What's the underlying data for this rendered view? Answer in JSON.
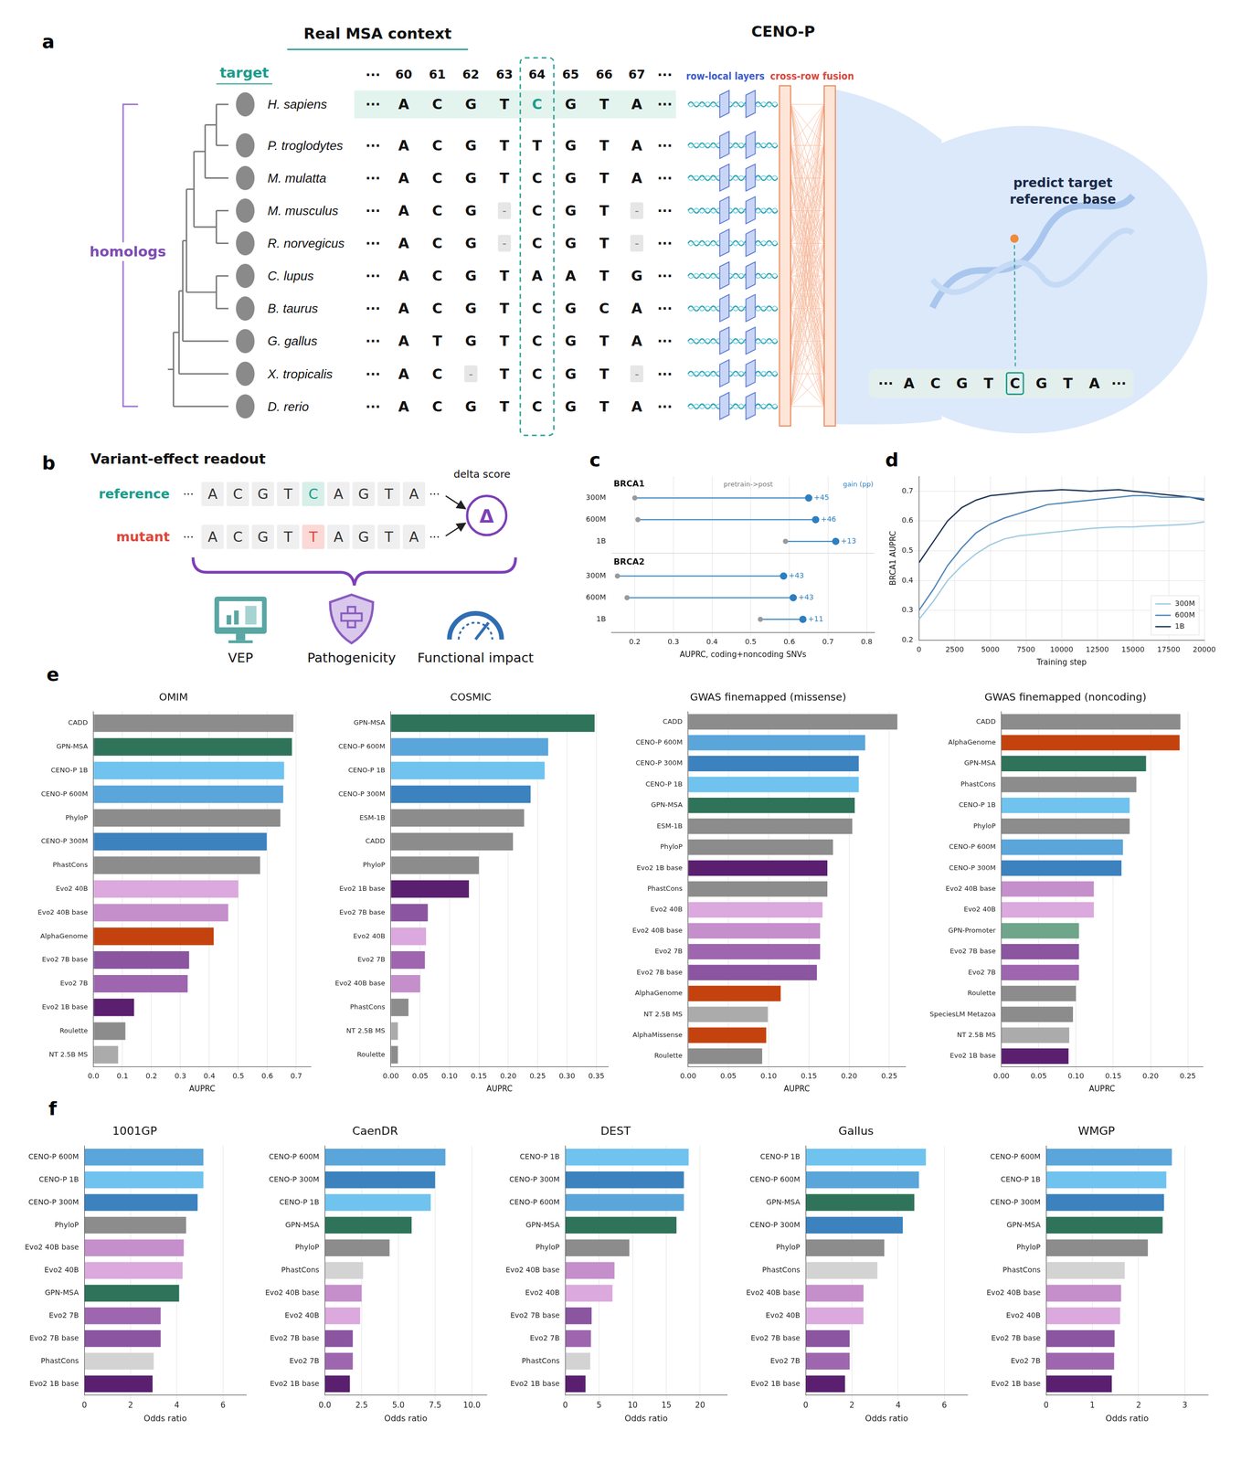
{
  "diagram_a": {
    "panel": "a",
    "title": "Real MSA context",
    "model_title": "CENO-P",
    "target_label": "target",
    "homologs_label": "homologs",
    "ellipsis": "···",
    "positions": [
      "60",
      "61",
      "62",
      "63",
      "64",
      "65",
      "66",
      "67"
    ],
    "target_position": "64",
    "rows": [
      {
        "species": "H. sapiens",
        "sequence": [
          "A",
          "C",
          "G",
          "T",
          "C",
          "G",
          "T",
          "A"
        ]
      },
      {
        "species": "P. troglodytes",
        "sequence": [
          "A",
          "C",
          "G",
          "T",
          "T",
          "G",
          "T",
          "A"
        ]
      },
      {
        "species": "M. mulatta",
        "sequence": [
          "A",
          "C",
          "G",
          "T",
          "C",
          "G",
          "T",
          "A"
        ]
      },
      {
        "species": "M. musculus",
        "sequence": [
          "A",
          "C",
          "G",
          "-",
          "C",
          "G",
          "T",
          "-"
        ]
      },
      {
        "species": "R. norvegicus",
        "sequence": [
          "A",
          "C",
          "G",
          "-",
          "C",
          "G",
          "T",
          "-"
        ]
      },
      {
        "species": "C. lupus",
        "sequence": [
          "A",
          "C",
          "G",
          "T",
          "A",
          "A",
          "T",
          "G"
        ]
      },
      {
        "species": "B. taurus",
        "sequence": [
          "A",
          "C",
          "G",
          "T",
          "C",
          "G",
          "C",
          "A"
        ]
      },
      {
        "species": "G. gallus",
        "sequence": [
          "A",
          "T",
          "G",
          "T",
          "C",
          "G",
          "T",
          "A"
        ]
      },
      {
        "species": "X. tropicalis",
        "sequence": [
          "A",
          "C",
          "-",
          "T",
          "C",
          "G",
          "T",
          "-"
        ]
      },
      {
        "species": "D. rerio",
        "sequence": [
          "A",
          "C",
          "G",
          "T",
          "C",
          "G",
          "T",
          "A"
        ]
      }
    ],
    "layer_labels": [
      "row-local layers",
      "cross-row fusion"
    ],
    "prediction_label": "predict target reference base",
    "output_sequence": [
      "A",
      "C",
      "G",
      "T",
      "C",
      "G",
      "T",
      "A"
    ]
  },
  "diagram_b": {
    "panel": "b",
    "title": "Variant-effect readout",
    "ellipsis": "···",
    "reference_label": "reference",
    "reference_sequence": [
      "A",
      "C",
      "G",
      "T",
      "C",
      "A",
      "G",
      "T",
      "A"
    ],
    "mutant_label": "mutant",
    "mutant_sequence": [
      "A",
      "C",
      "G",
      "T",
      "T",
      "A",
      "G",
      "T",
      "A"
    ],
    "delta_label": "delta score",
    "delta_symbol": "Δ",
    "readouts": [
      "VEP",
      "Pathogenicity",
      "Functional impact"
    ]
  },
  "chart_data": [
    {
      "panel": "c",
      "type": "dumbbell",
      "orientation": "horizontal",
      "annotations": [
        "pretrain->post",
        "gain (pp)"
      ],
      "xlabel": "AUPRC, coding+noncoding SNVs",
      "xlim": [
        0.14,
        0.82
      ],
      "xticks": [
        0.2,
        0.3,
        0.4,
        0.5,
        0.6,
        0.7,
        0.8
      ],
      "grid": true,
      "color": "#2c7fc0",
      "groups": [
        {
          "name": "BRCA1",
          "categories": [
            "300M",
            "600M",
            "1B"
          ],
          "pretrain": [
            0.2,
            0.208,
            0.59
          ],
          "post": [
            0.65,
            0.668,
            0.72
          ],
          "value_labels": [
            "+45",
            "+46",
            "+13"
          ]
        },
        {
          "name": "BRCA2",
          "categories": [
            "300M",
            "600M",
            "1B"
          ],
          "pretrain": [
            0.155,
            0.18,
            0.525
          ],
          "post": [
            0.585,
            0.61,
            0.635
          ],
          "value_labels": [
            "+43",
            "+43",
            "+11"
          ]
        }
      ]
    },
    {
      "panel": "d",
      "type": "line",
      "xlabel": "Training step",
      "ylabel": "BRCA1 AUPRC",
      "x": [
        0,
        1000,
        2000,
        3000,
        4000,
        5000,
        6000,
        7000,
        8000,
        9000,
        10000,
        11000,
        12000,
        13000,
        14000,
        15000,
        16000,
        17000,
        18000,
        19000,
        20000
      ],
      "series": [
        {
          "name": "300M",
          "color": "#9ecae1",
          "values": [
            0.27,
            0.33,
            0.4,
            0.45,
            0.49,
            0.52,
            0.54,
            0.55,
            0.555,
            0.56,
            0.565,
            0.57,
            0.575,
            0.578,
            0.58,
            0.58,
            0.583,
            0.585,
            0.587,
            0.59,
            0.597
          ]
        },
        {
          "name": "600M",
          "color": "#4f86b8",
          "values": [
            0.3,
            0.37,
            0.45,
            0.51,
            0.56,
            0.59,
            0.61,
            0.625,
            0.64,
            0.655,
            0.66,
            0.665,
            0.67,
            0.675,
            0.68,
            0.685,
            0.685,
            0.68,
            0.68,
            0.68,
            0.675
          ]
        },
        {
          "name": "1B",
          "color": "#1d3557",
          "values": [
            0.46,
            0.53,
            0.6,
            0.645,
            0.67,
            0.685,
            0.69,
            0.695,
            0.7,
            0.702,
            0.705,
            0.703,
            0.7,
            0.703,
            0.705,
            0.7,
            0.695,
            0.69,
            0.685,
            0.68,
            0.67
          ]
        }
      ],
      "xlim": [
        0,
        20000
      ],
      "xticks": [
        0,
        2500,
        5000,
        7500,
        10000,
        12500,
        15000,
        17500,
        20000
      ],
      "ylim": [
        0.2,
        0.75
      ],
      "yticks": [
        0.2,
        0.3,
        0.4,
        0.5,
        0.6,
        0.7
      ],
      "grid": true,
      "legend": "lower right"
    },
    {
      "panel": "e",
      "type": "bar",
      "orientation": "horizontal",
      "title": "OMIM",
      "xlabel": "AUPRC",
      "categories": [
        "CADD",
        "GPN-MSA",
        "CENO-P 1B",
        "CENO-P 600M",
        "PhyloP",
        "CENO-P 300M",
        "PhastCons",
        "Evo2 40B",
        "Evo2 40B base",
        "AlphaGenome",
        "Evo2 7B base",
        "Evo2 7B",
        "Evo2 1B base",
        "Roulette",
        "NT 2.5B MS"
      ],
      "values": [
        0.69,
        0.685,
        0.658,
        0.655,
        0.645,
        0.598,
        0.575,
        0.5,
        0.465,
        0.415,
        0.33,
        0.325,
        0.14,
        0.11,
        0.085
      ],
      "colors": [
        "#8c8c8c",
        "#2e735a",
        "#6fc3ee",
        "#5aa5da",
        "#8c8c8c",
        "#3b82bf",
        "#8c8c8c",
        "#dba9dd",
        "#c58fcb",
        "#c4420e",
        "#8b55a0",
        "#9e66ae",
        "#5b1f70",
        "#8c8c8c",
        "#ababab"
      ],
      "xlim": [
        0,
        0.75
      ],
      "xticks": [
        {
          "value": 0,
          "label": "0.0"
        },
        0.1,
        0.2,
        0.3,
        0.4,
        0.5,
        0.6,
        0.7
      ],
      "grid": true
    },
    {
      "type": "bar",
      "orientation": "horizontal",
      "title": "COSMIC",
      "xlabel": "AUPRC",
      "categories": [
        "GPN-MSA",
        "CENO-P 600M",
        "CENO-P 1B",
        "CENO-P 300M",
        "ESM-1B",
        "CADD",
        "PhyloP",
        "Evo2 1B base",
        "Evo2 7B base",
        "Evo2 40B",
        "Evo2 7B",
        "Evo2 40B base",
        "PhastCons",
        "NT 2.5B MS",
        "Roulette"
      ],
      "values": [
        0.347,
        0.268,
        0.262,
        0.238,
        0.227,
        0.208,
        0.15,
        0.133,
        0.063,
        0.06,
        0.058,
        0.05,
        0.03,
        0.012,
        0.012
      ],
      "colors": [
        "#2e735a",
        "#5aa5da",
        "#6fc3ee",
        "#3b82bf",
        "#8c8c8c",
        "#8c8c8c",
        "#8c8c8c",
        "#5b1f70",
        "#8b55a0",
        "#dba9dd",
        "#9e66ae",
        "#c58fcb",
        "#8c8c8c",
        "#ababab",
        "#8c8c8c"
      ],
      "xlim": [
        0,
        0.37
      ],
      "xticks": [
        {
          "value": 0,
          "label": "0.00"
        },
        0.05,
        {
          "value": 0.1,
          "label": "0.10"
        },
        0.15,
        {
          "value": 0.2,
          "label": "0.20"
        },
        0.25,
        {
          "value": 0.3,
          "label": "0.30"
        },
        0.35
      ],
      "grid": true
    },
    {
      "type": "bar",
      "orientation": "horizontal",
      "title": "GWAS finemapped (missense)",
      "xlabel": "AUPRC",
      "categories": [
        "CADD",
        "CENO-P 600M",
        "CENO-P 300M",
        "CENO-P 1B",
        "GPN-MSA",
        "ESM-1B",
        "PhyloP",
        "Evo2 1B base",
        "PhastCons",
        "Evo2 40B",
        "Evo2 40B base",
        "Evo2 7B",
        "Evo2 7B base",
        "AlphaGenome",
        "NT 2.5B MS",
        "AlphaMissense",
        "Roulette"
      ],
      "values": [
        0.26,
        0.22,
        0.212,
        0.212,
        0.207,
        0.204,
        0.18,
        0.173,
        0.173,
        0.167,
        0.164,
        0.164,
        0.16,
        0.115,
        0.099,
        0.097,
        0.092
      ],
      "colors": [
        "#8c8c8c",
        "#5aa5da",
        "#3b82bf",
        "#6fc3ee",
        "#2e735a",
        "#8c8c8c",
        "#8c8c8c",
        "#5b1f70",
        "#8c8c8c",
        "#dba9dd",
        "#c58fcb",
        "#9e66ae",
        "#8b55a0",
        "#c4420e",
        "#ababab",
        "#c4420e",
        "#8c8c8c"
      ],
      "xlim": [
        0,
        0.27
      ],
      "xticks": [
        {
          "value": 0,
          "label": "0.00"
        },
        0.05,
        {
          "value": 0.1,
          "label": "0.10"
        },
        0.15,
        {
          "value": 0.2,
          "label": "0.20"
        },
        0.25
      ],
      "grid": true
    },
    {
      "type": "bar",
      "orientation": "horizontal",
      "title": "GWAS finemapped (noncoding)",
      "xlabel": "AUPRC",
      "categories": [
        "CADD",
        "AlphaGenome",
        "GPN-MSA",
        "PhastCons",
        "CENO-P 1B",
        "PhyloP",
        "CENO-P 600M",
        "CENO-P 300M",
        "Evo2 40B base",
        "Evo2 40B",
        "GPN-Promoter",
        "Evo2 7B base",
        "Evo2 7B",
        "Roulette",
        "SpeciesLM Metazoa",
        "NT 2.5B MS",
        "Evo2 1B base"
      ],
      "values": [
        0.24,
        0.239,
        0.194,
        0.181,
        0.172,
        0.172,
        0.163,
        0.161,
        0.124,
        0.124,
        0.104,
        0.104,
        0.104,
        0.1,
        0.096,
        0.091,
        0.09
      ],
      "colors": [
        "#8c8c8c",
        "#c4420e",
        "#2e735a",
        "#8c8c8c",
        "#6fc3ee",
        "#8c8c8c",
        "#5aa5da",
        "#3b82bf",
        "#c58fcb",
        "#dba9dd",
        "#6fa58b",
        "#8b55a0",
        "#9e66ae",
        "#8c8c8c",
        "#8c8c8c",
        "#ababab",
        "#5b1f70"
      ],
      "xlim": [
        0,
        0.27
      ],
      "xticks": [
        {
          "value": 0,
          "label": "0.00"
        },
        0.05,
        {
          "value": 0.1,
          "label": "0.10"
        },
        0.15,
        {
          "value": 0.2,
          "label": "0.20"
        },
        0.25
      ],
      "grid": true
    },
    {
      "panel": "f",
      "type": "bar",
      "orientation": "horizontal",
      "title": "1001GP",
      "xlabel": "Odds ratio",
      "categories": [
        "CENO-P 600M",
        "CENO-P 1B",
        "CENO-P 300M",
        "PhyloP",
        "Evo2 40B base",
        "Evo2 40B",
        "GPN-MSA",
        "Evo2 7B",
        "Evo2 7B base",
        "PhastCons",
        "Evo2 1B base"
      ],
      "values": [
        5.15,
        5.15,
        4.9,
        4.4,
        4.3,
        4.25,
        4.1,
        3.3,
        3.3,
        3.0,
        2.95
      ],
      "colors": [
        "#5aa5da",
        "#6fc3ee",
        "#3b82bf",
        "#8c8c8c",
        "#c58fcb",
        "#dba9dd",
        "#2e735a",
        "#9e66ae",
        "#8b55a0",
        "#d3d3d3",
        "#5b1f70"
      ],
      "xlim": [
        0,
        7
      ],
      "xticks": [
        0,
        2,
        4,
        6
      ],
      "grid": true
    },
    {
      "type": "bar",
      "orientation": "horizontal",
      "title": "CaenDR",
      "xlabel": "Odds ratio",
      "categories": [
        "CENO-P 600M",
        "CENO-P 300M",
        "CENO-P 1B",
        "GPN-MSA",
        "PhyloP",
        "PhastCons",
        "Evo2 40B base",
        "Evo2 40B",
        "Evo2 7B base",
        "Evo2 7B",
        "Evo2 1B base"
      ],
      "values": [
        8.2,
        7.5,
        7.2,
        5.9,
        4.4,
        2.6,
        2.5,
        2.4,
        1.9,
        1.9,
        1.7
      ],
      "colors": [
        "#5aa5da",
        "#3b82bf",
        "#6fc3ee",
        "#2e735a",
        "#8c8c8c",
        "#d3d3d3",
        "#c58fcb",
        "#dba9dd",
        "#8b55a0",
        "#9e66ae",
        "#5b1f70"
      ],
      "xlim": [
        0,
        11
      ],
      "xticks": [
        {
          "value": 0,
          "label": "0.0"
        },
        2.5,
        {
          "value": 5,
          "label": "5.0"
        },
        7.5,
        {
          "value": 10,
          "label": "10.0"
        }
      ],
      "grid": true
    },
    {
      "type": "bar",
      "orientation": "horizontal",
      "title": "DEST",
      "xlabel": "Odds ratio",
      "categories": [
        "CENO-P 1B",
        "CENO-P 300M",
        "CENO-P 600M",
        "GPN-MSA",
        "PhyloP",
        "Evo2 40B base",
        "Evo2 40B",
        "Evo2 7B base",
        "Evo2 7B",
        "PhastCons",
        "Evo2 1B base"
      ],
      "values": [
        18.3,
        17.6,
        17.6,
        16.5,
        9.5,
        7.3,
        7.0,
        3.9,
        3.8,
        3.7,
        3.0
      ],
      "colors": [
        "#6fc3ee",
        "#3b82bf",
        "#5aa5da",
        "#2e735a",
        "#8c8c8c",
        "#c58fcb",
        "#dba9dd",
        "#8b55a0",
        "#9e66ae",
        "#d3d3d3",
        "#5b1f70"
      ],
      "xlim": [
        0,
        24
      ],
      "xticks": [
        0,
        5,
        10,
        15,
        20
      ],
      "grid": true
    },
    {
      "type": "bar",
      "orientation": "horizontal",
      "title": "Gallus",
      "xlabel": "Odds ratio",
      "categories": [
        "CENO-P 1B",
        "CENO-P 600M",
        "GPN-MSA",
        "CENO-P 300M",
        "PhyloP",
        "PhastCons",
        "Evo2 40B base",
        "Evo2 40B",
        "Evo2 7B base",
        "Evo2 7B",
        "Evo2 1B base"
      ],
      "values": [
        5.2,
        4.9,
        4.7,
        4.2,
        3.4,
        3.1,
        2.5,
        2.5,
        1.9,
        1.9,
        1.7
      ],
      "colors": [
        "#6fc3ee",
        "#5aa5da",
        "#2e735a",
        "#3b82bf",
        "#8c8c8c",
        "#d3d3d3",
        "#c58fcb",
        "#dba9dd",
        "#8b55a0",
        "#9e66ae",
        "#5b1f70"
      ],
      "xlim": [
        0,
        7
      ],
      "xticks": [
        0,
        2,
        4,
        6
      ],
      "grid": true
    },
    {
      "type": "bar",
      "orientation": "horizontal",
      "title": "WMGP",
      "xlabel": "Odds ratio",
      "categories": [
        "CENO-P 600M",
        "CENO-P 1B",
        "CENO-P 300M",
        "GPN-MSA",
        "PhyloP",
        "PhastCons",
        "Evo2 40B base",
        "Evo2 40B",
        "Evo2 7B base",
        "Evo2 7B",
        "Evo2 1B base"
      ],
      "values": [
        2.72,
        2.6,
        2.55,
        2.52,
        2.2,
        1.7,
        1.62,
        1.6,
        1.48,
        1.47,
        1.42
      ],
      "colors": [
        "#5aa5da",
        "#6fc3ee",
        "#3b82bf",
        "#2e735a",
        "#8c8c8c",
        "#d3d3d3",
        "#c58fcb",
        "#dba9dd",
        "#8b55a0",
        "#9e66ae",
        "#5b1f70"
      ],
      "xlim": [
        0,
        3.5
      ],
      "xticks": [
        0,
        1,
        2,
        3
      ],
      "grid": true
    }
  ]
}
